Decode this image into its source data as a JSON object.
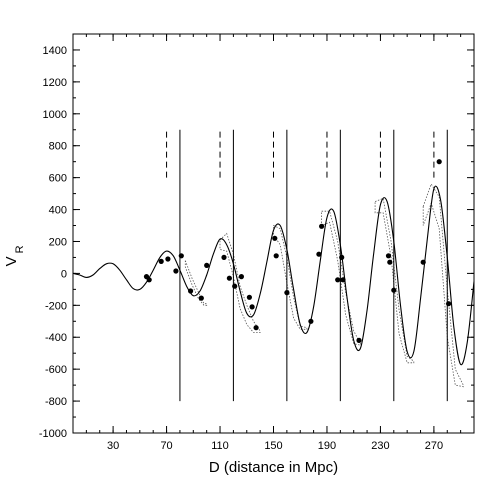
{
  "chart_data": {
    "type": "scatter",
    "title": "",
    "xlabel": "D (distance in Mpc)",
    "ylabel_main": "V",
    "ylabel_sub": "R",
    "xlim": [
      0,
      300
    ],
    "ylim": [
      -1000,
      1500
    ],
    "x_ticks": [
      30,
      70,
      110,
      150,
      190,
      230,
      270
    ],
    "x_minor_step": 10,
    "y_ticks": [
      -1000,
      -800,
      -600,
      -400,
      -200,
      0,
      200,
      400,
      600,
      800,
      1000,
      1200,
      1400
    ],
    "y_minor_step": 100,
    "grid": false,
    "points": {
      "x": [
        55,
        57,
        66,
        71,
        77,
        81,
        88,
        96,
        100,
        113,
        117,
        121,
        126,
        132,
        134,
        137,
        151,
        152,
        160,
        178,
        184,
        186,
        198,
        201,
        202,
        214,
        236,
        237,
        240,
        262,
        274,
        281
      ],
      "y": [
        -20,
        -40,
        75,
        90,
        15,
        110,
        -110,
        -155,
        50,
        100,
        -30,
        -80,
        -20,
        -150,
        -210,
        -340,
        220,
        110,
        -120,
        -300,
        120,
        295,
        -40,
        100,
        -40,
        -420,
        110,
        70,
        -105,
        70,
        700,
        -190
      ]
    },
    "curve": {
      "x": [
        0,
        5,
        10,
        15,
        20,
        25,
        30,
        35,
        40,
        45,
        50,
        55,
        60,
        65,
        70,
        75,
        80,
        85,
        90,
        95,
        100,
        105,
        110,
        115,
        120,
        125,
        130,
        135,
        140,
        145,
        150,
        155,
        160,
        165,
        170,
        175,
        180,
        185,
        190,
        195,
        200,
        205,
        210,
        215,
        220,
        225,
        230,
        235,
        240,
        245,
        250,
        255,
        260,
        265,
        270,
        275,
        280,
        285,
        290,
        295,
        300
      ],
      "y": [
        0,
        -10,
        -25,
        -10,
        30,
        60,
        60,
        20,
        -40,
        -95,
        -100,
        -55,
        20,
        100,
        140,
        110,
        20,
        -80,
        -140,
        -110,
        -10,
        120,
        215,
        180,
        60,
        -110,
        -250,
        -260,
        -130,
        70,
        270,
        300,
        150,
        -100,
        -320,
        -370,
        -210,
        80,
        350,
        390,
        180,
        -150,
        -420,
        -470,
        -230,
        130,
        430,
        450,
        200,
        -200,
        -490,
        -490,
        -160,
        210,
        530,
        460,
        100,
        -340,
        -570,
        -430,
        -50
      ]
    },
    "bands": [
      {
        "x": [
          84,
          89,
          94,
          98,
          100
        ],
        "upper": [
          80,
          -30,
          -120,
          -190,
          -190
        ],
        "lower": [
          40,
          -70,
          -160,
          -200,
          -200
        ]
      },
      {
        "x": [
          110,
          115,
          120,
          125,
          130,
          135,
          140
        ],
        "upper": [
          210,
          250,
          120,
          -80,
          -200,
          -300,
          -360
        ],
        "lower": [
          150,
          140,
          -20,
          -220,
          -320,
          -370,
          -370
        ]
      },
      {
        "x": [
          150,
          155,
          160,
          165,
          170,
          175
        ],
        "upper": [
          300,
          280,
          100,
          -150,
          -330,
          -340
        ],
        "lower": [
          240,
          180,
          -60,
          -280,
          -350,
          -350
        ]
      },
      {
        "x": [
          186,
          192,
          198,
          204,
          210,
          215
        ],
        "upper": [
          390,
          390,
          200,
          -120,
          -360,
          -440
        ],
        "lower": [
          300,
          320,
          80,
          -260,
          -440,
          -450
        ]
      },
      {
        "x": [
          226,
          232,
          238,
          244,
          250,
          255
        ],
        "upper": [
          450,
          470,
          200,
          -230,
          -520,
          -550
        ],
        "lower": [
          380,
          380,
          100,
          -380,
          -560,
          -560
        ]
      },
      {
        "x": [
          262,
          268,
          274,
          280,
          286,
          292
        ],
        "upper": [
          420,
          560,
          480,
          -100,
          -600,
          -700
        ],
        "lower": [
          300,
          440,
          280,
          -400,
          -700,
          -710
        ]
      }
    ],
    "solid_verticals": {
      "x": [
        80,
        120,
        160,
        200,
        240,
        280
      ],
      "y_range": [
        -800,
        900
      ]
    },
    "dashed_verticals": {
      "x": [
        70,
        110,
        150,
        190,
        230,
        270
      ],
      "y_range": [
        600,
        900
      ]
    }
  }
}
